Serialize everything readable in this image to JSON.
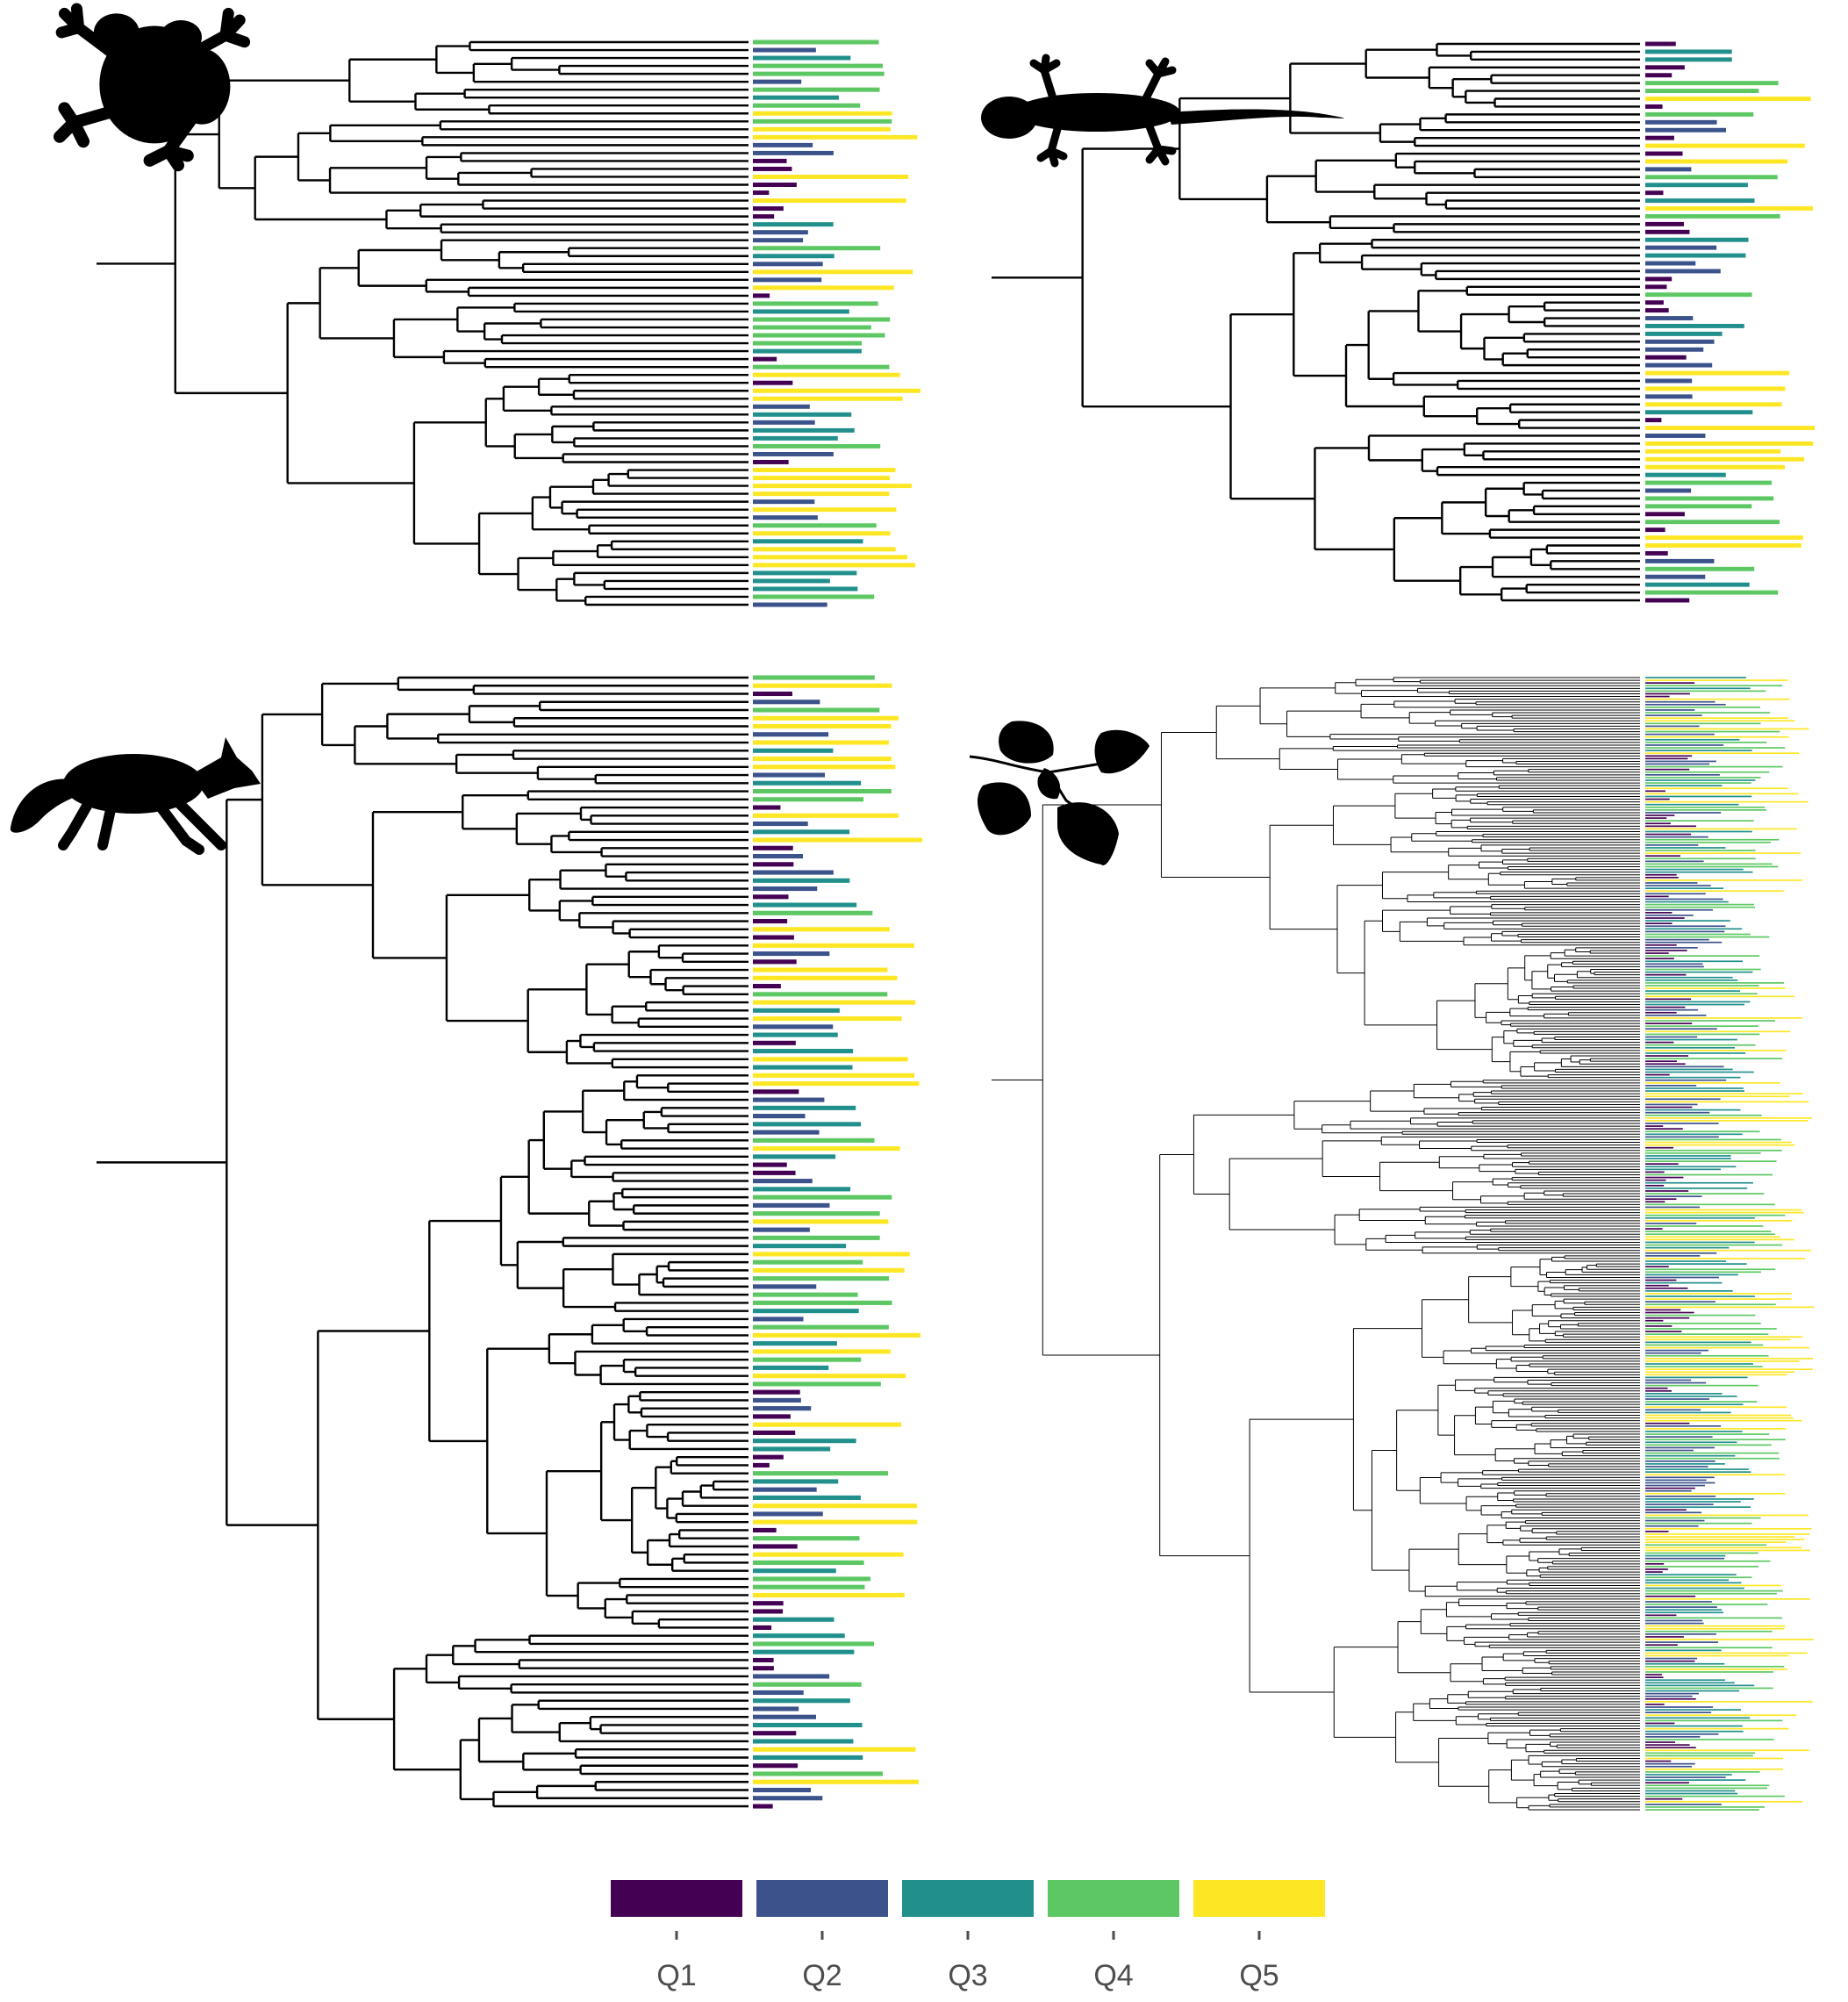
{
  "panels": [
    {
      "id": "frog",
      "silhouette": "frog-icon",
      "tips": 72,
      "seed": 11
    },
    {
      "id": "gecko",
      "silhouette": "gecko-icon",
      "tips": 72,
      "seed": 23
    },
    {
      "id": "fox",
      "silhouette": "fox-icon",
      "tips": 140,
      "seed": 37
    },
    {
      "id": "plant",
      "silhouette": "leaves-icon",
      "tips": 420,
      "seed": 53
    }
  ],
  "legend": {
    "categories": [
      {
        "label": "Q1",
        "color": "#440154"
      },
      {
        "label": "Q2",
        "color": "#3B528B"
      },
      {
        "label": "Q3",
        "color": "#21908C"
      },
      {
        "label": "Q4",
        "color": "#5DC863"
      },
      {
        "label": "Q5",
        "color": "#FDE725"
      }
    ]
  }
}
